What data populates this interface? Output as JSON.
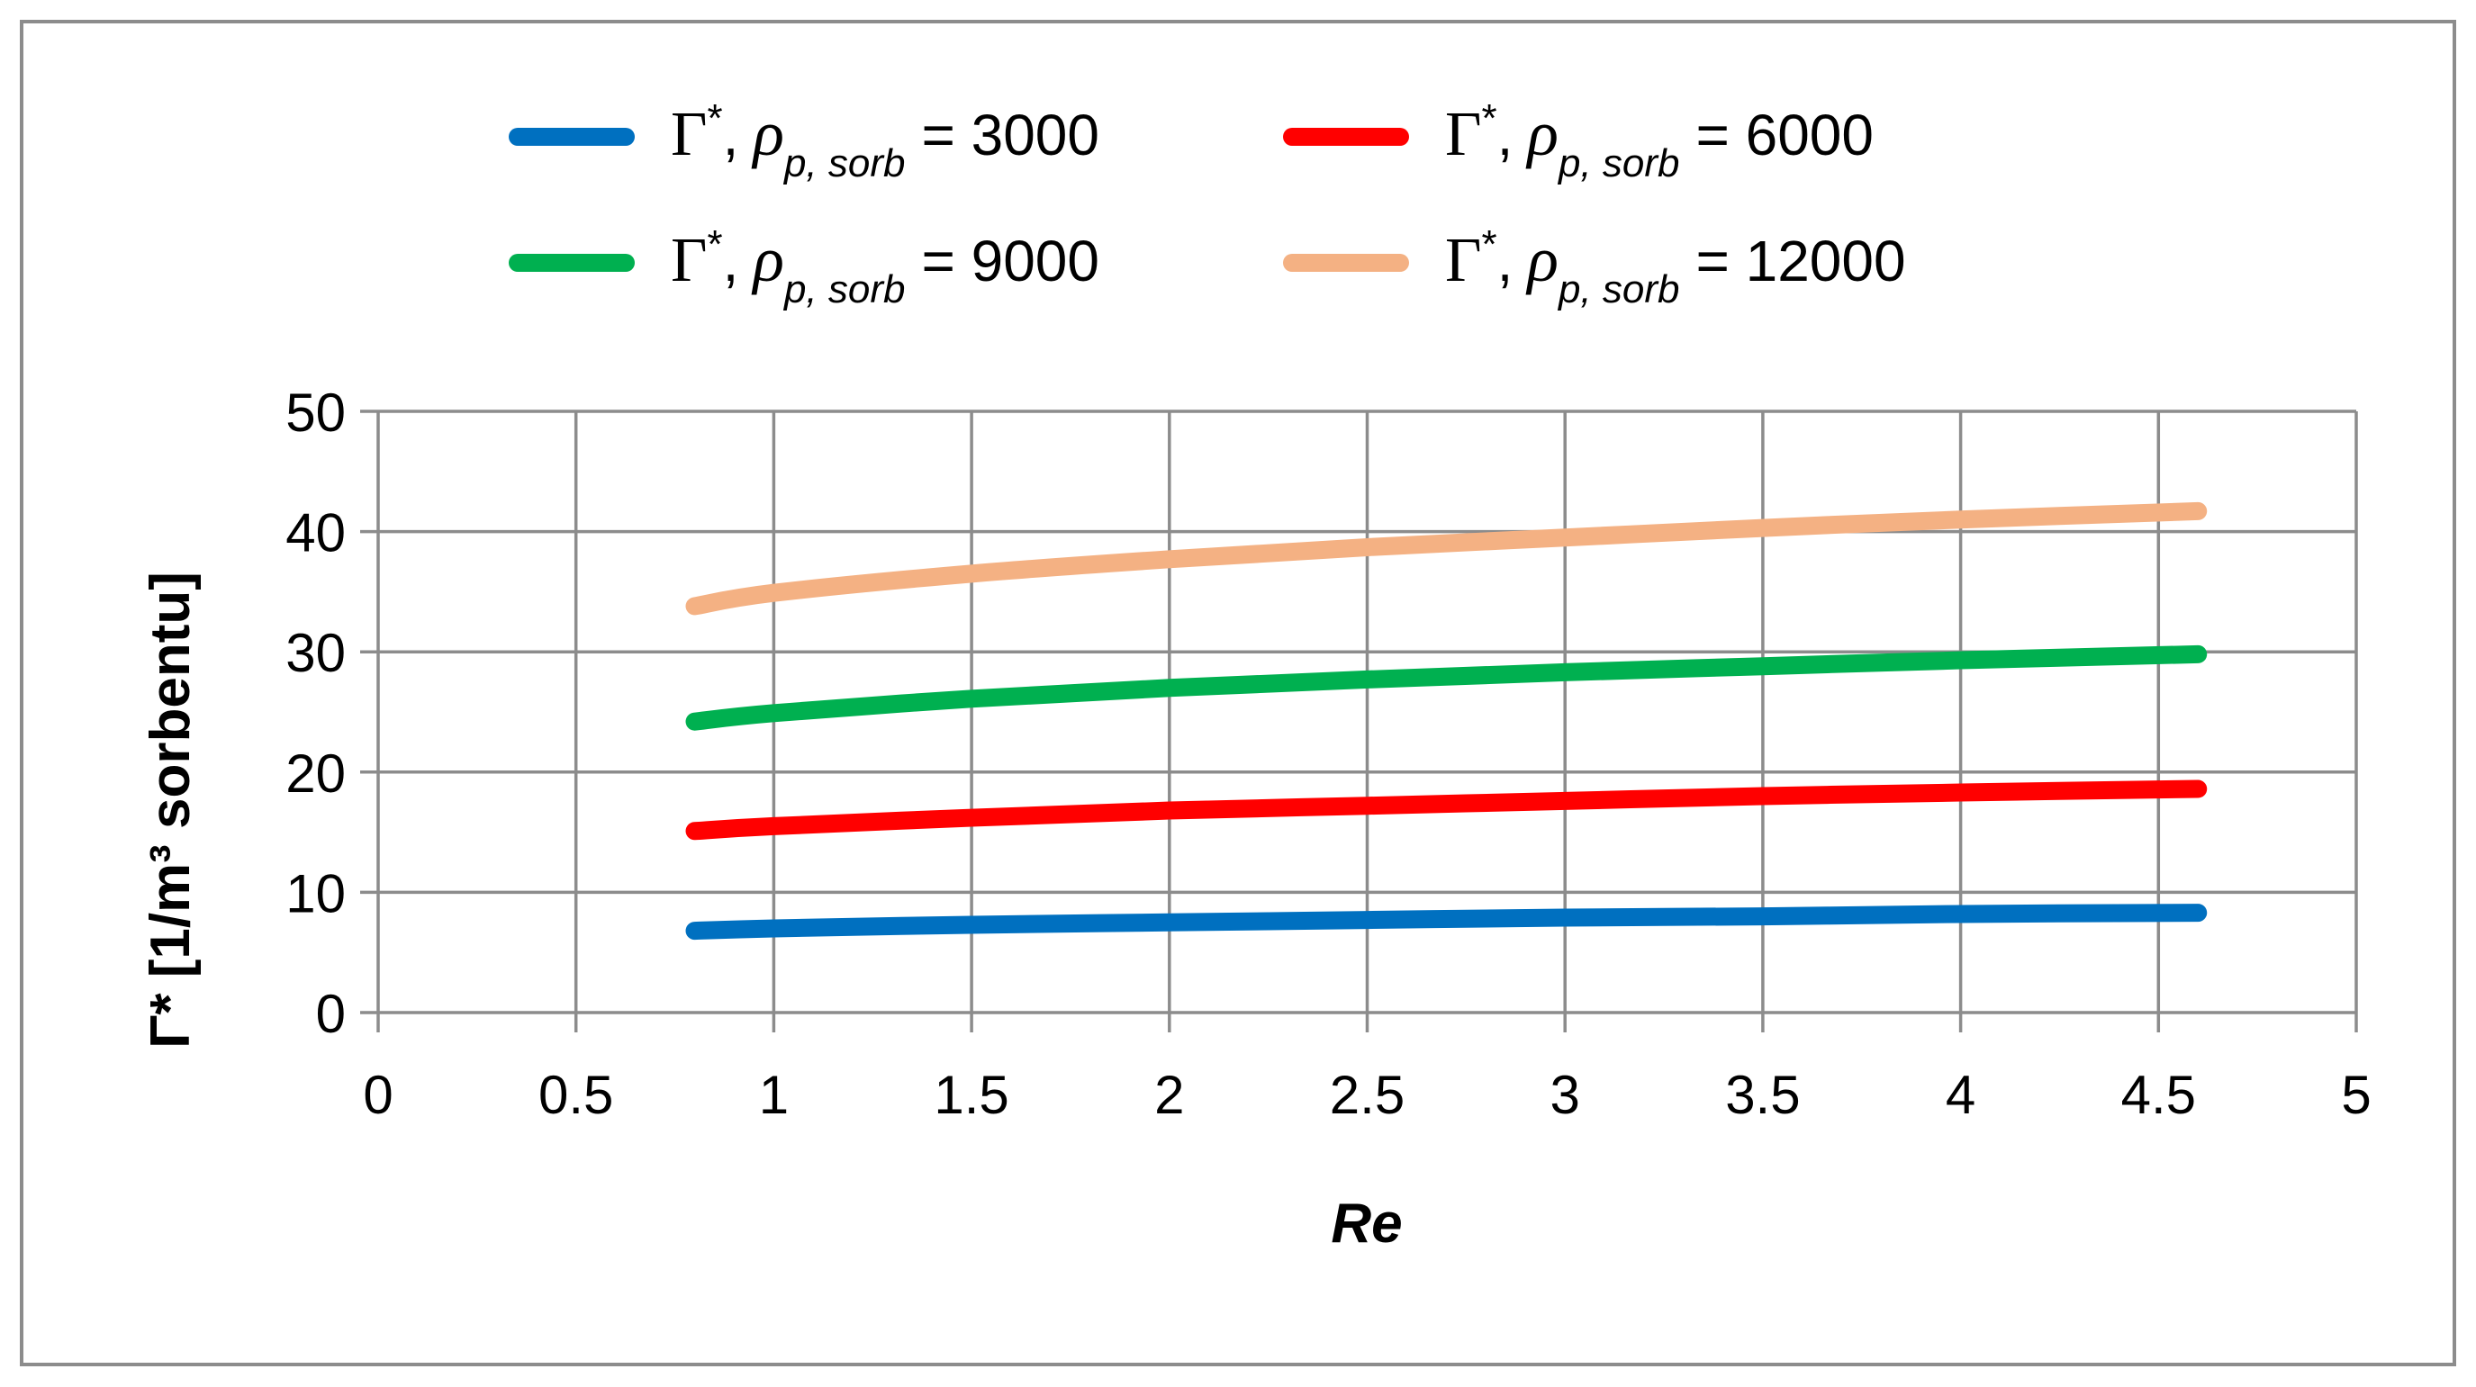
{
  "chart_data": {
    "type": "line",
    "title": "",
    "xlabel": "Re",
    "ylabel": "Γ* [1/m³ sorbentu]",
    "xlim": [
      0,
      5
    ],
    "ylim": [
      0,
      50
    ],
    "xticks": [
      0,
      0.5,
      1,
      1.5,
      2,
      2.5,
      3,
      3.5,
      4,
      4.5,
      5
    ],
    "yticks": [
      0,
      10,
      20,
      30,
      40,
      50
    ],
    "xtick_labels": [
      "0",
      "0.5",
      "1",
      "1.5",
      "2",
      "2.5",
      "3",
      "3.5",
      "4",
      "4.5",
      "5"
    ],
    "ytick_labels": [
      "0",
      "10",
      "20",
      "30",
      "40",
      "50"
    ],
    "grid": true,
    "legend_position": "top",
    "x": [
      0.8,
      1.0,
      1.5,
      2.0,
      2.5,
      3.0,
      3.5,
      4.0,
      4.6
    ],
    "series": [
      {
        "name": "Γ*, ρp, sorb = 3000",
        "legend_symbol": "Γ",
        "legend_superscript": "*",
        "legend_rho": "ρ",
        "legend_subscript": "p, sorb",
        "legend_value": "= 3000",
        "color": "#0070C0",
        "values": [
          6.8,
          7.0,
          7.3,
          7.5,
          7.7,
          7.9,
          8.0,
          8.2,
          8.3
        ]
      },
      {
        "name": "Γ*, ρp, sorb = 6000",
        "legend_symbol": "Γ",
        "legend_superscript": "*",
        "legend_rho": "ρ",
        "legend_subscript": "p, sorb",
        "legend_value": "= 6000",
        "color": "#FF0000",
        "values": [
          15.1,
          15.5,
          16.2,
          16.8,
          17.2,
          17.6,
          18.0,
          18.3,
          18.6
        ]
      },
      {
        "name": "Γ*, ρp, sorb = 9000",
        "legend_symbol": "Γ",
        "legend_superscript": "*",
        "legend_rho": "ρ",
        "legend_subscript": "p, sorb",
        "legend_value": "= 9000",
        "color": "#00B050",
        "values": [
          24.2,
          24.9,
          26.1,
          27.0,
          27.7,
          28.3,
          28.8,
          29.3,
          29.8
        ]
      },
      {
        "name": "Γ*, ρp, sorb = 12000",
        "legend_symbol": "Γ",
        "legend_superscript": "*",
        "legend_rho": "ρ",
        "legend_subscript": "p, sorb",
        "legend_value": "= 12000",
        "color": "#F4B183",
        "values": [
          33.8,
          34.9,
          36.5,
          37.7,
          38.7,
          39.5,
          40.3,
          41.0,
          41.7
        ]
      }
    ]
  }
}
